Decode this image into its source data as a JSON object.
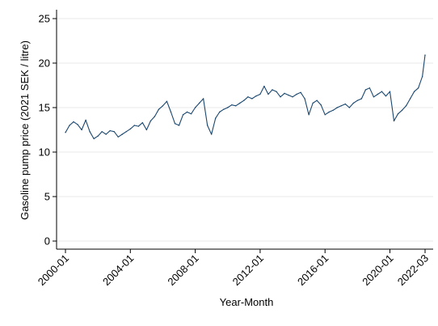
{
  "chart_data": {
    "type": "line",
    "xlabel": "Year-Month",
    "ylabel": "Gasoline pump price (2021 SEK / litre)",
    "ylim": [
      0,
      25
    ],
    "yticks": [
      0,
      5,
      10,
      15,
      20,
      25
    ],
    "ytick_labels": [
      "0",
      "5",
      "10",
      "15",
      "20",
      "25"
    ],
    "xlim": [
      "2000-01",
      "2022-03"
    ],
    "xticks": [
      "2000-01",
      "2004-01",
      "2008-01",
      "2012-01",
      "2016-01",
      "2020-01",
      "2022-03"
    ],
    "xtick_labels": [
      "2000-01",
      "2004-01",
      "2008-01",
      "2012-01",
      "2016-01",
      "2020-01",
      "2022-03"
    ],
    "grid": "horizontal",
    "line_color": "#1a476f",
    "series": [
      {
        "x": [
          "2000-01",
          "2000-04",
          "2000-07",
          "2000-10",
          "2001-01",
          "2001-04",
          "2001-07",
          "2001-10",
          "2002-01",
          "2002-04",
          "2002-07",
          "2002-10",
          "2003-01",
          "2003-04",
          "2003-07",
          "2003-10",
          "2004-01",
          "2004-04",
          "2004-07",
          "2004-10",
          "2005-01",
          "2005-04",
          "2005-07",
          "2005-10",
          "2006-01",
          "2006-04",
          "2006-07",
          "2006-10",
          "2007-01",
          "2007-04",
          "2007-07",
          "2007-10",
          "2008-01",
          "2008-04",
          "2008-07",
          "2008-10",
          "2009-01",
          "2009-04",
          "2009-07",
          "2009-10",
          "2010-01",
          "2010-04",
          "2010-07",
          "2010-10",
          "2011-01",
          "2011-04",
          "2011-07",
          "2011-10",
          "2012-01",
          "2012-04",
          "2012-07",
          "2012-10",
          "2013-01",
          "2013-04",
          "2013-07",
          "2013-10",
          "2014-01",
          "2014-04",
          "2014-07",
          "2014-10",
          "2015-01",
          "2015-04",
          "2015-07",
          "2015-10",
          "2016-01",
          "2016-04",
          "2016-07",
          "2016-10",
          "2017-01",
          "2017-04",
          "2017-07",
          "2017-10",
          "2018-01",
          "2018-04",
          "2018-07",
          "2018-10",
          "2019-01",
          "2019-04",
          "2019-07",
          "2019-10",
          "2020-01",
          "2020-04",
          "2020-07",
          "2020-10",
          "2021-01",
          "2021-04",
          "2021-07",
          "2021-10",
          "2022-01",
          "2022-03"
        ],
        "y": [
          12.2,
          13.0,
          13.4,
          13.1,
          12.5,
          13.6,
          12.3,
          11.5,
          11.8,
          12.3,
          12.0,
          12.4,
          12.3,
          11.7,
          12.0,
          12.3,
          12.6,
          13.0,
          12.9,
          13.3,
          12.5,
          13.5,
          14.0,
          14.8,
          15.2,
          15.7,
          14.5,
          13.2,
          13.0,
          14.2,
          14.5,
          14.3,
          15.0,
          15.5,
          16.0,
          13.0,
          12.0,
          13.8,
          14.5,
          14.8,
          15.0,
          15.3,
          15.2,
          15.5,
          15.8,
          16.2,
          16.0,
          16.3,
          16.5,
          17.4,
          16.5,
          17.0,
          16.8,
          16.2,
          16.6,
          16.4,
          16.2,
          16.5,
          16.7,
          16.0,
          14.2,
          15.5,
          15.8,
          15.3,
          14.2,
          14.5,
          14.7,
          15.0,
          15.2,
          15.4,
          15.0,
          15.5,
          15.8,
          16.0,
          17.0,
          17.2,
          16.2,
          16.5,
          16.8,
          16.3,
          16.8,
          13.5,
          14.3,
          14.7,
          15.2,
          16.0,
          16.8,
          17.2,
          18.5,
          20.9
        ]
      }
    ]
  }
}
